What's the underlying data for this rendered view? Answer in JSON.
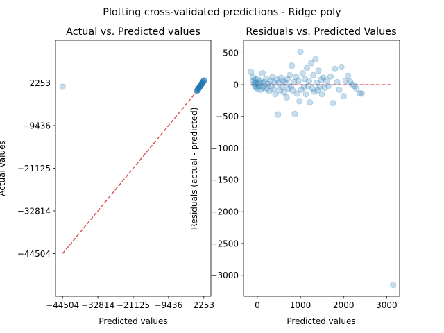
{
  "figure": {
    "suptitle": "Plotting cross-validated predictions - Ridge poly"
  },
  "chart_data": [
    {
      "type": "scatter",
      "title": "Actual vs. Predicted values",
      "xlabel": "Predicted values",
      "ylabel": "Actual values",
      "xlim": [
        -46842,
        4591
      ],
      "ylim": [
        -56193,
        13942
      ],
      "xticks": [
        -44504,
        -32814,
        -21125,
        -9436,
        2253
      ],
      "yticks": [
        -44504,
        -32814,
        -21125,
        -9436,
        2253
      ],
      "xtick_labels": [
        "−44504",
        "−32814",
        "−21125",
        "−9436",
        "2253"
      ],
      "ytick_labels": [
        "−44504",
        "−32814",
        "−21125",
        "−9436",
        "2253"
      ],
      "grid": false,
      "marker_color": "#1f77b4",
      "reference_line": {
        "style": "dashed",
        "color": "#d62728",
        "x": [
          -44504,
          2253
        ],
        "y": [
          -44504,
          2253
        ]
      },
      "points": [
        [
          -44504,
          1200
        ],
        [
          -50,
          0
        ],
        [
          50,
          120
        ],
        [
          150,
          250
        ],
        [
          250,
          380
        ],
        [
          350,
          500
        ],
        [
          450,
          620
        ],
        [
          550,
          750
        ],
        [
          650,
          880
        ],
        [
          750,
          1000
        ],
        [
          850,
          1120
        ],
        [
          950,
          1250
        ],
        [
          1050,
          1380
        ],
        [
          1150,
          1500
        ],
        [
          1250,
          1620
        ],
        [
          1350,
          1750
        ],
        [
          1450,
          1880
        ],
        [
          1550,
          2000
        ],
        [
          1650,
          2120
        ],
        [
          1750,
          2250
        ],
        [
          1850,
          2380
        ],
        [
          1950,
          2500
        ],
        [
          2050,
          2620
        ],
        [
          2150,
          2750
        ],
        [
          2253,
          2880
        ],
        [
          2350,
          3000
        ]
      ]
    },
    {
      "type": "scatter",
      "title": "Residuals vs. Predicted Values",
      "xlabel": "Predicted values",
      "ylabel": "Residuals (actual - predicted)",
      "xlim": [
        -320,
        3300
      ],
      "ylim": [
        -3330,
        700
      ],
      "xticks": [
        0,
        1000,
        2000,
        3000
      ],
      "yticks": [
        500,
        0,
        -500,
        -1000,
        -1500,
        -2000,
        -2500,
        -3000
      ],
      "xtick_labels": [
        "0",
        "1000",
        "2000",
        "3000"
      ],
      "ytick_labels": [
        "500",
        "0",
        "−500",
        "−1000",
        "−1500",
        "−2000",
        "−2500",
        "−3000"
      ],
      "grid": false,
      "marker_color": "#1f77b4",
      "reference_line": {
        "style": "dashed",
        "color": "#d62728",
        "x": [
          -170,
          3100
        ],
        "y": [
          0,
          0
        ]
      },
      "points": [
        [
          -150,
          200
        ],
        [
          -100,
          120
        ],
        [
          -90,
          60
        ],
        [
          -70,
          20
        ],
        [
          -60,
          -20
        ],
        [
          -50,
          80
        ],
        [
          -40,
          -40
        ],
        [
          -20,
          30
        ],
        [
          0,
          -60
        ],
        [
          10,
          90
        ],
        [
          20,
          10
        ],
        [
          40,
          -30
        ],
        [
          60,
          50
        ],
        [
          80,
          -80
        ],
        [
          100,
          20
        ],
        [
          120,
          180
        ],
        [
          130,
          -50
        ],
        [
          150,
          40
        ],
        [
          170,
          -20
        ],
        [
          200,
          90
        ],
        [
          220,
          -60
        ],
        [
          250,
          10
        ],
        [
          280,
          -100
        ],
        [
          300,
          60
        ],
        [
          320,
          -30
        ],
        [
          350,
          120
        ],
        [
          380,
          -70
        ],
        [
          400,
          30
        ],
        [
          420,
          -150
        ],
        [
          450,
          80
        ],
        [
          480,
          -470
        ],
        [
          500,
          20
        ],
        [
          520,
          -90
        ],
        [
          550,
          110
        ],
        [
          580,
          -40
        ],
        [
          600,
          60
        ],
        [
          620,
          -120
        ],
        [
          650,
          30
        ],
        [
          680,
          -200
        ],
        [
          700,
          90
        ],
        [
          720,
          -60
        ],
        [
          750,
          150
        ],
        [
          780,
          -30
        ],
        [
          800,
          300
        ],
        [
          820,
          -90
        ],
        [
          850,
          40
        ],
        [
          870,
          -460
        ],
        [
          900,
          120
        ],
        [
          920,
          -140
        ],
        [
          950,
          60
        ],
        [
          980,
          -260
        ],
        [
          1000,
          520
        ],
        [
          1020,
          -80
        ],
        [
          1050,
          180
        ],
        [
          1080,
          -40
        ],
        [
          1100,
          90
        ],
        [
          1130,
          -150
        ],
        [
          1150,
          260
        ],
        [
          1180,
          -20
        ],
        [
          1200,
          60
        ],
        [
          1220,
          -280
        ],
        [
          1250,
          340
        ],
        [
          1280,
          -60
        ],
        [
          1300,
          150
        ],
        [
          1320,
          -110
        ],
        [
          1350,
          400
        ],
        [
          1380,
          30
        ],
        [
          1400,
          -90
        ],
        [
          1420,
          220
        ],
        [
          1450,
          -40
        ],
        [
          1480,
          80
        ],
        [
          1500,
          -150
        ],
        [
          1530,
          110
        ],
        [
          1560,
          -50
        ],
        [
          1600,
          60
        ],
        [
          1650,
          -20
        ],
        [
          1700,
          130
        ],
        [
          1750,
          -290
        ],
        [
          1800,
          250
        ],
        [
          1850,
          40
        ],
        [
          1900,
          -80
        ],
        [
          1950,
          280
        ],
        [
          2000,
          -180
        ],
        [
          2050,
          60
        ],
        [
          2100,
          140
        ],
        [
          2150,
          50
        ],
        [
          2200,
          0
        ],
        [
          2250,
          -20
        ],
        [
          2300,
          -60
        ],
        [
          2380,
          -140
        ],
        [
          2420,
          -140
        ],
        [
          3150,
          -3150
        ]
      ]
    }
  ]
}
